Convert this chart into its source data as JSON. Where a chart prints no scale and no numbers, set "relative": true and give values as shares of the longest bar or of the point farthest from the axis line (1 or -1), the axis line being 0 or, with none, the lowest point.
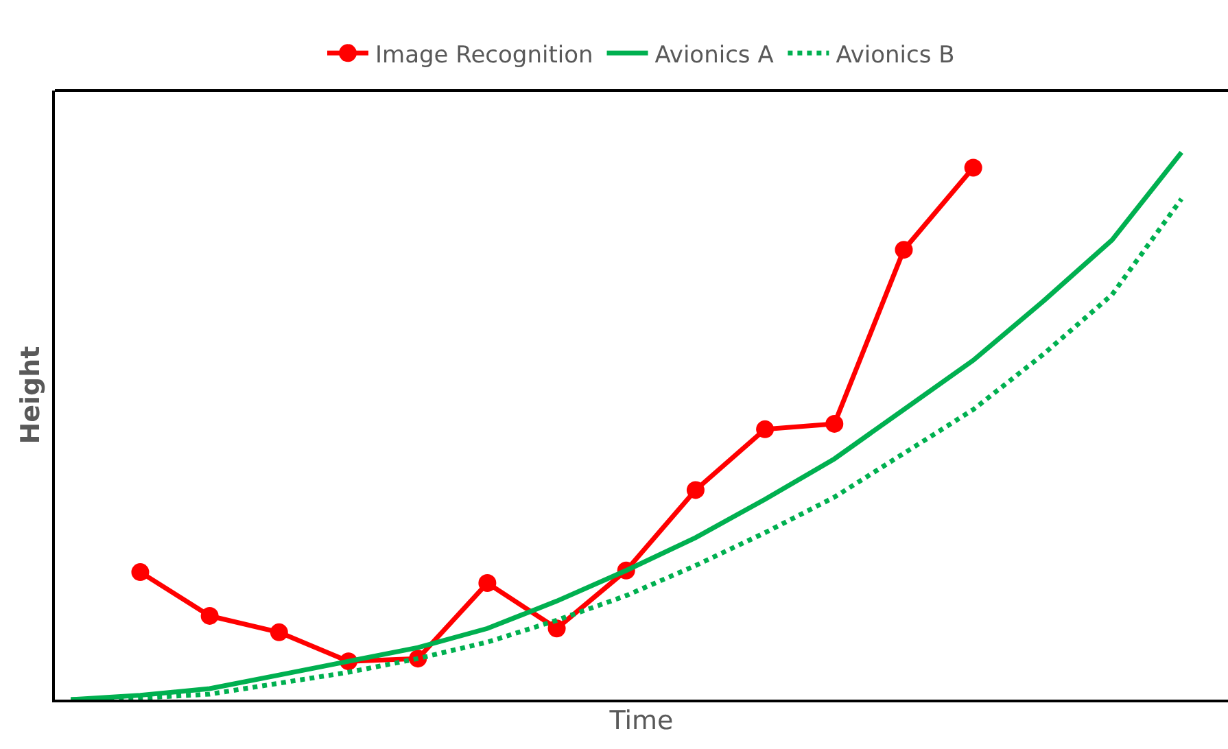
{
  "chart_data": {
    "type": "line",
    "relative": true,
    "xlabel": "Time",
    "ylabel": "Height",
    "legend": "top",
    "categories": [
      null,
      null,
      null,
      null,
      null,
      null,
      null,
      null,
      null,
      null,
      null,
      null,
      null,
      null,
      null,
      null,
      null
    ],
    "series": [
      {
        "name": "Image Recognition",
        "color": "#ff0000",
        "marker": "circle",
        "line_style": "solid",
        "values": [
          null,
          0.233,
          0.153,
          0.123,
          0.07,
          0.075,
          0.213,
          0.13,
          0.236,
          0.383,
          0.494,
          0.504,
          0.822,
          0.972,
          null,
          null,
          null
        ]
      },
      {
        "name": "Avionics A",
        "color": "#00b050",
        "marker": "none",
        "line_style": "solid",
        "values": [
          0,
          0.008,
          0.02,
          0.045,
          0.07,
          0.095,
          0.13,
          0.18,
          0.236,
          0.296,
          0.366,
          0.44,
          0.53,
          0.62,
          0.727,
          0.84,
          1.0
        ]
      },
      {
        "name": "Avionics B",
        "color": "#00b050",
        "marker": "none",
        "line_style": "dotted",
        "values": [
          0,
          0.003,
          0.01,
          0.03,
          0.05,
          0.075,
          0.105,
          0.145,
          0.19,
          0.245,
          0.305,
          0.37,
          0.45,
          0.53,
          0.63,
          0.74,
          0.915
        ]
      }
    ]
  }
}
